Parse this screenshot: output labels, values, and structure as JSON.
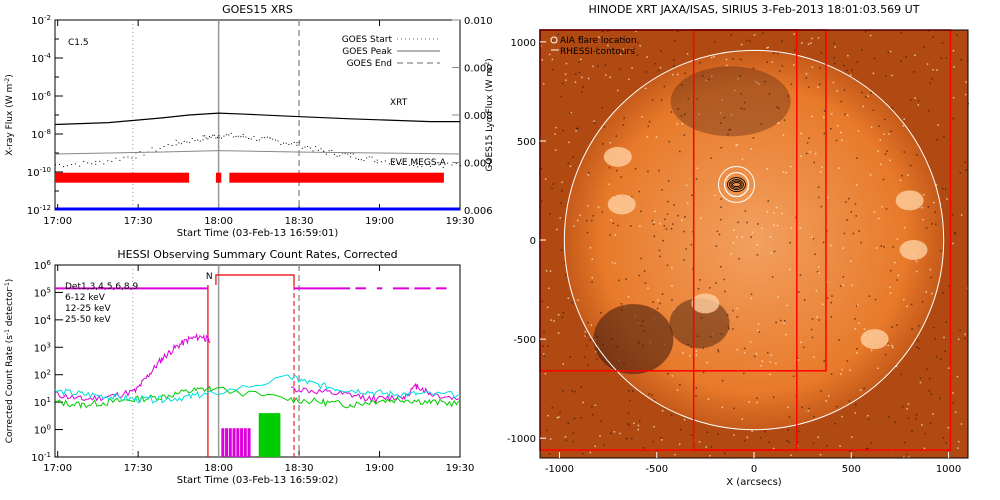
{
  "chart_data": [
    {
      "type": "line",
      "title": "GOES15 XRS",
      "xlabel": "Start Time (03-Feb-13 16:59:01)",
      "ylabel": "X-ray Flux (W m^-2)",
      "ylabel_right": "GOES15 Lyα Flux (W m^-2)",
      "x_ticks": [
        "17:00",
        "17:30",
        "18:00",
        "18:30",
        "19:00",
        "19:30"
      ],
      "y_ticks": [
        "10^-12",
        "10^-10",
        "10^-8",
        "10^-6",
        "10^-4",
        "10^-2"
      ],
      "y_ticks_right": [
        "0.006",
        "0.007",
        "0.008",
        "0.009",
        "0.010"
      ],
      "log_y": true,
      "ylim_exp": [
        -12,
        -2
      ],
      "ylim_right": [
        0.006,
        0.01
      ],
      "flare_class": "C1.5",
      "legend": [
        {
          "label": "GOES Start",
          "style": "dotted"
        },
        {
          "label": "GOES Peak",
          "style": "solid"
        },
        {
          "label": "GOES End",
          "style": "dashed"
        }
      ],
      "markers_min": {
        "start": 29,
        "peak": 61,
        "end": 91
      },
      "labels": {
        "xrt": "XRT",
        "eve": "EVE MEGS-A"
      },
      "series": [
        {
          "name": "long",
          "x_min": [
            0,
            20,
            40,
            50,
            61,
            70,
            85,
            110,
            140,
            151
          ],
          "log_flux": [
            -7.5,
            -7.4,
            -7.15,
            -7.0,
            -6.9,
            -6.95,
            -7.05,
            -7.2,
            -7.35,
            -7.35
          ]
        },
        {
          "name": "short",
          "x_min": [
            0,
            15,
            30,
            45,
            55,
            61,
            70,
            80,
            90,
            100,
            110,
            120,
            135,
            151
          ],
          "log_flux": [
            -9.6,
            -9.5,
            -9.1,
            -8.45,
            -8.2,
            -8.05,
            -8.1,
            -8.3,
            -8.5,
            -8.9,
            -9.1,
            -9.35,
            -9.55,
            -9.6
          ]
        },
        {
          "name": "lya",
          "x_min": [
            0,
            40,
            61,
            90,
            120,
            151
          ],
          "y": [
            0.00718,
            0.00722,
            0.00725,
            0.00722,
            0.0072,
            0.00718
          ]
        }
      ],
      "red_bars_min": [
        [
          0,
          50
        ],
        [
          60,
          62
        ],
        [
          65,
          145
        ]
      ],
      "colors": {
        "long": "#000000",
        "short": "#000000",
        "lya": "#888888",
        "xrt": "#cc0000",
        "eve": "#0000cc",
        "bars": "#ff0000",
        "baseline": "#0000ff"
      }
    },
    {
      "type": "line",
      "title": "HESSI Observing Summary Count Rates, Corrected",
      "xlabel": "Start Time (03-Feb-13 16:59:02)",
      "ylabel": "Corrected Count Rate (s^-1 detector^-1)",
      "x_ticks": [
        "17:00",
        "17:30",
        "18:00",
        "18:30",
        "19:00",
        "19:30"
      ],
      "y_ticks": [
        "10^-1",
        "10^0",
        "10^1",
        "10^2",
        "10^3",
        "10^4",
        "10^5",
        "10^6"
      ],
      "log_y": true,
      "ylim_exp": [
        -1,
        6
      ],
      "legend": [
        {
          "label": "Det1,3,4,5,6,8,9",
          "color": "#000000"
        },
        {
          "label": "6-12 keV",
          "color": "#dd00dd"
        },
        {
          "label": "12-25 keV",
          "color": "#00cc00"
        },
        {
          "label": "25-50 keV",
          "color": "#00dddd"
        }
      ],
      "night_label": "N",
      "markers_min": {
        "start": 29,
        "peak": 61,
        "end": 91
      },
      "series": [
        {
          "name": "6-12 keV",
          "x_min": [
            0,
            10,
            20,
            30,
            35,
            40,
            45,
            50,
            55,
            58
          ],
          "log_rate": [
            1.3,
            1.1,
            1.2,
            1.4,
            2.0,
            2.6,
            3.0,
            3.3,
            3.4,
            3.2
          ]
        },
        {
          "name": "6-12 keV post",
          "x_min": [
            88,
            100,
            110,
            120,
            130,
            135,
            140,
            151
          ],
          "log_rate": [
            1.5,
            1.35,
            1.25,
            1.1,
            1.2,
            1.6,
            1.3,
            1.1
          ]
        },
        {
          "name": "12-25 keV",
          "x_min": [
            0,
            10,
            20,
            30,
            40,
            50,
            58,
            88,
            100,
            110,
            120,
            130,
            140,
            151
          ],
          "log_rate": [
            1.0,
            0.9,
            1.0,
            1.1,
            1.2,
            1.4,
            1.5,
            1.1,
            1.0,
            0.9,
            1.05,
            1.1,
            1.0,
            0.95
          ]
        },
        {
          "name": "25-50 keV",
          "x_min": [
            0,
            10,
            20,
            30,
            40,
            50,
            58,
            88,
            95,
            105,
            115,
            125,
            135,
            151
          ],
          "log_rate": [
            1.4,
            1.3,
            1.2,
            1.1,
            1.1,
            1.2,
            1.3,
            1.9,
            1.7,
            1.5,
            1.4,
            1.3,
            1.3,
            1.25
          ]
        }
      ],
      "attenuator_min": [
        62,
        72
      ],
      "night_min": [
        60,
        88
      ],
      "colors": {
        "night": "#ee0000",
        "det": "#dd00dd",
        "green": "#00cc00",
        "cyan": "#00dddd",
        "magenta": "#dd00dd"
      }
    },
    {
      "type": "image",
      "title": "HINODE XRT JAXA/ISAS, SIRIUS   3-Feb-2013 18:01:03.569 UT",
      "xlabel": "X (arcsecs)",
      "x_ticks": [
        "-1000",
        "-500",
        "0",
        "500",
        "1000"
      ],
      "y_ticks": [
        "-1000",
        "-500",
        "0",
        "500",
        "1000"
      ],
      "xlim": [
        -1100,
        1100
      ],
      "ylim": [
        -1100,
        1060
      ],
      "legend": [
        {
          "label": "AIA flare location",
          "marker": "circle"
        },
        {
          "label": "RHESSI contours",
          "marker": "contour"
        }
      ],
      "solar_radius_arcsec": 975,
      "flare_xy": [
        -90,
        280
      ],
      "fov_boxes": [
        {
          "x": [
            -1100,
            1010
          ],
          "y": [
            -1060,
            1060
          ]
        },
        {
          "x": [
            -1100,
            370
          ],
          "y": [
            -660,
            1060
          ]
        },
        {
          "x": [
            -310,
            220
          ],
          "y": [
            -1060,
            1060
          ]
        }
      ],
      "colors": {
        "disk": "#e87a2a",
        "box": "#ff0000",
        "limb": "#ffffff"
      }
    }
  ]
}
